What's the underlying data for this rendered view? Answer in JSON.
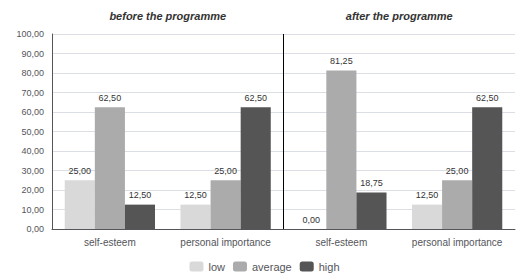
{
  "chart_data": {
    "type": "bar",
    "annotations": [
      "before the programme",
      "after the programme"
    ],
    "categories": [
      "self-esteem",
      "personal importance",
      "self-esteem",
      "personal importance"
    ],
    "series": [
      {
        "name": "low",
        "color": "#d9d9d9",
        "values": [
          25.0,
          12.5,
          0.0,
          12.5
        ],
        "value_labels": [
          "25,00",
          "12,50",
          "0,00",
          "12,50"
        ]
      },
      {
        "name": "average",
        "color": "#ababab",
        "values": [
          62.5,
          25.0,
          81.25,
          25.0
        ],
        "value_labels": [
          "62,50",
          "25,00",
          "81,25",
          "25,00"
        ]
      },
      {
        "name": "high",
        "color": "#555555",
        "values": [
          12.5,
          62.5,
          18.75,
          62.5
        ],
        "value_labels": [
          "12,50",
          "62,50",
          "18,75",
          "62,50"
        ]
      }
    ],
    "ylim": [
      0,
      100
    ],
    "yticks": [
      {
        "value": 0,
        "label": "0,00"
      },
      {
        "value": 10,
        "label": "10,00"
      },
      {
        "value": 20,
        "label": "20,00"
      },
      {
        "value": 30,
        "label": "30,00"
      },
      {
        "value": 40,
        "label": "40,00"
      },
      {
        "value": 50,
        "label": "50,00"
      },
      {
        "value": 60,
        "label": "60,00"
      },
      {
        "value": 70,
        "label": "70,00"
      },
      {
        "value": 80,
        "label": "80,00"
      },
      {
        "value": 90,
        "label": "90,00"
      },
      {
        "value": 100,
        "label": "100,00"
      }
    ],
    "grid": true,
    "legend": "bottom",
    "data_labels": true
  }
}
